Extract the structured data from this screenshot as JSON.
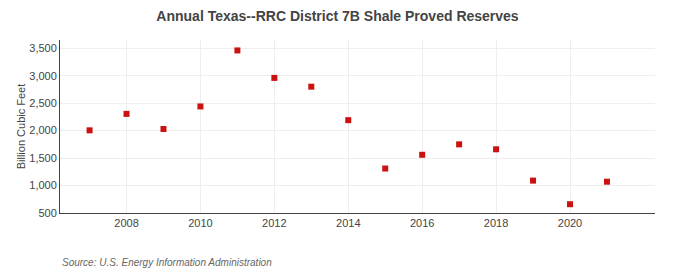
{
  "chart_data": {
    "type": "scatter",
    "title": "Annual Texas--RRC District 7B Shale Proved Reserves",
    "y_label": "Billion Cubic Feet",
    "annotations": [
      "Source: U.S. Energy Information Administration"
    ],
    "x": [
      2007,
      2008,
      2009,
      2010,
      2011,
      2012,
      2013,
      2014,
      2015,
      2016,
      2017,
      2018,
      2019,
      2020,
      2021
    ],
    "values": [
      2005,
      2305,
      2030,
      2440,
      3460,
      2960,
      2800,
      2190,
      1310,
      1560,
      1750,
      1660,
      1090,
      660,
      1070
    ],
    "color": "#cc1111",
    "marker": "square",
    "xlim": [
      2006.2,
      2022.3
    ],
    "xticks": [
      2008,
      2010,
      2012,
      2014,
      2016,
      2018,
      2020
    ],
    "ylim": [
      500,
      3650
    ],
    "yticks": [
      500,
      {
        "value": 1000,
        "label": "1,000"
      },
      {
        "value": 1500,
        "label": "1,500"
      },
      {
        "value": 2000,
        "label": "2,000"
      },
      {
        "value": 2500,
        "label": "2,500"
      },
      {
        "value": 3000,
        "label": "3,000"
      },
      {
        "value": 3500,
        "label": "3,500"
      }
    ],
    "grid": true
  }
}
